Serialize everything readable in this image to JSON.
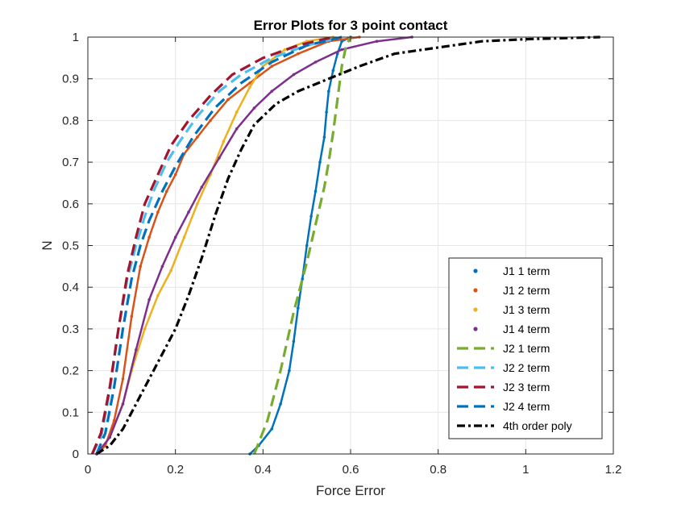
{
  "chart_data": {
    "type": "line",
    "title": "Error Plots for 3 point contact",
    "xlabel": "Force Error",
    "ylabel": "N",
    "xlim": [
      0,
      1.2
    ],
    "ylim": [
      0,
      1
    ],
    "xticks": [
      "0",
      "0.2",
      "0.4",
      "0.6",
      "0.8",
      "1",
      "1.2"
    ],
    "yticks": [
      "0",
      "0.1",
      "0.2",
      "0.3",
      "0.4",
      "0.5",
      "0.6",
      "0.7",
      "0.8",
      "0.9",
      "1"
    ],
    "grid": true,
    "legend_position": "bottom-right",
    "series": [
      {
        "name": "J1 1 term",
        "color": "#0072BD",
        "style": "solid",
        "marker": "dot",
        "points": [
          [
            0.37,
            0
          ],
          [
            0.39,
            0.02
          ],
          [
            0.42,
            0.06
          ],
          [
            0.44,
            0.12
          ],
          [
            0.46,
            0.2
          ],
          [
            0.47,
            0.27
          ],
          [
            0.48,
            0.35
          ],
          [
            0.49,
            0.42
          ],
          [
            0.5,
            0.5
          ],
          [
            0.51,
            0.57
          ],
          [
            0.52,
            0.63
          ],
          [
            0.53,
            0.7
          ],
          [
            0.54,
            0.76
          ],
          [
            0.545,
            0.82
          ],
          [
            0.55,
            0.87
          ],
          [
            0.56,
            0.92
          ],
          [
            0.57,
            0.96
          ],
          [
            0.58,
            0.99
          ],
          [
            0.6,
            1
          ]
        ]
      },
      {
        "name": "J1 2 term",
        "color": "#D95319",
        "style": "solid",
        "marker": "dot",
        "points": [
          [
            0.02,
            0
          ],
          [
            0.04,
            0.02
          ],
          [
            0.06,
            0.08
          ],
          [
            0.08,
            0.18
          ],
          [
            0.1,
            0.33
          ],
          [
            0.12,
            0.45
          ],
          [
            0.14,
            0.52
          ],
          [
            0.16,
            0.58
          ],
          [
            0.18,
            0.63
          ],
          [
            0.2,
            0.67
          ],
          [
            0.22,
            0.72
          ],
          [
            0.25,
            0.76
          ],
          [
            0.28,
            0.8
          ],
          [
            0.32,
            0.85
          ],
          [
            0.37,
            0.89
          ],
          [
            0.42,
            0.93
          ],
          [
            0.48,
            0.96
          ],
          [
            0.55,
            0.99
          ],
          [
            0.62,
            1
          ]
        ]
      },
      {
        "name": "J1 3 term",
        "color": "#EDB120",
        "style": "solid",
        "marker": "dot",
        "points": [
          [
            0.02,
            0
          ],
          [
            0.05,
            0.04
          ],
          [
            0.08,
            0.12
          ],
          [
            0.1,
            0.2
          ],
          [
            0.13,
            0.3
          ],
          [
            0.16,
            0.38
          ],
          [
            0.19,
            0.44
          ],
          [
            0.22,
            0.52
          ],
          [
            0.25,
            0.6
          ],
          [
            0.28,
            0.67
          ],
          [
            0.31,
            0.75
          ],
          [
            0.34,
            0.82
          ],
          [
            0.37,
            0.88
          ],
          [
            0.4,
            0.93
          ],
          [
            0.45,
            0.97
          ],
          [
            0.5,
            0.99
          ],
          [
            0.56,
            1
          ]
        ]
      },
      {
        "name": "J1 4 term",
        "color": "#7E2F8E",
        "style": "solid",
        "marker": "dot",
        "points": [
          [
            0.02,
            0
          ],
          [
            0.05,
            0.04
          ],
          [
            0.08,
            0.12
          ],
          [
            0.11,
            0.25
          ],
          [
            0.14,
            0.37
          ],
          [
            0.17,
            0.45
          ],
          [
            0.2,
            0.52
          ],
          [
            0.23,
            0.58
          ],
          [
            0.26,
            0.64
          ],
          [
            0.3,
            0.71
          ],
          [
            0.34,
            0.78
          ],
          [
            0.38,
            0.83
          ],
          [
            0.42,
            0.87
          ],
          [
            0.47,
            0.91
          ],
          [
            0.52,
            0.94
          ],
          [
            0.58,
            0.97
          ],
          [
            0.66,
            0.99
          ],
          [
            0.74,
            1
          ]
        ]
      },
      {
        "name": "J2 1 term",
        "color": "#77AC30",
        "style": "dashed",
        "marker": "none",
        "points": [
          [
            0.38,
            0
          ],
          [
            0.41,
            0.08
          ],
          [
            0.44,
            0.2
          ],
          [
            0.47,
            0.34
          ],
          [
            0.5,
            0.46
          ],
          [
            0.52,
            0.55
          ],
          [
            0.54,
            0.64
          ],
          [
            0.55,
            0.7
          ],
          [
            0.56,
            0.77
          ],
          [
            0.57,
            0.85
          ],
          [
            0.58,
            0.93
          ],
          [
            0.59,
            0.98
          ],
          [
            0.6,
            1
          ]
        ]
      },
      {
        "name": "J2 2 term",
        "color": "#4DBEEE",
        "style": "dashed",
        "marker": "none",
        "points": [
          [
            0.01,
            0
          ],
          [
            0.03,
            0.04
          ],
          [
            0.05,
            0.15
          ],
          [
            0.07,
            0.3
          ],
          [
            0.09,
            0.42
          ],
          [
            0.11,
            0.5
          ],
          [
            0.13,
            0.57
          ],
          [
            0.15,
            0.63
          ],
          [
            0.18,
            0.7
          ],
          [
            0.21,
            0.75
          ],
          [
            0.25,
            0.81
          ],
          [
            0.3,
            0.87
          ],
          [
            0.35,
            0.91
          ],
          [
            0.42,
            0.95
          ],
          [
            0.5,
            0.98
          ],
          [
            0.58,
            1
          ]
        ]
      },
      {
        "name": "J2 3 term",
        "color": "#A2142F",
        "style": "dashed",
        "marker": "none",
        "points": [
          [
            0.01,
            0
          ],
          [
            0.03,
            0.05
          ],
          [
            0.05,
            0.16
          ],
          [
            0.07,
            0.3
          ],
          [
            0.09,
            0.43
          ],
          [
            0.11,
            0.52
          ],
          [
            0.13,
            0.6
          ],
          [
            0.16,
            0.67
          ],
          [
            0.19,
            0.74
          ],
          [
            0.23,
            0.8
          ],
          [
            0.28,
            0.86
          ],
          [
            0.33,
            0.91
          ],
          [
            0.4,
            0.95
          ],
          [
            0.48,
            0.98
          ],
          [
            0.56,
            1
          ]
        ]
      },
      {
        "name": "J2 4 term",
        "color": "#0072BD",
        "style": "dashed",
        "marker": "none",
        "points": [
          [
            0.02,
            0
          ],
          [
            0.04,
            0.05
          ],
          [
            0.06,
            0.16
          ],
          [
            0.08,
            0.3
          ],
          [
            0.1,
            0.42
          ],
          [
            0.12,
            0.5
          ],
          [
            0.14,
            0.56
          ],
          [
            0.17,
            0.63
          ],
          [
            0.2,
            0.69
          ],
          [
            0.24,
            0.76
          ],
          [
            0.29,
            0.83
          ],
          [
            0.35,
            0.89
          ],
          [
            0.42,
            0.94
          ],
          [
            0.5,
            0.98
          ],
          [
            0.58,
            1
          ]
        ]
      },
      {
        "name": "4th order poly",
        "color": "#000000",
        "style": "dashdot",
        "marker": "none",
        "points": [
          [
            0.02,
            0
          ],
          [
            0.05,
            0.02
          ],
          [
            0.08,
            0.06
          ],
          [
            0.11,
            0.12
          ],
          [
            0.14,
            0.18
          ],
          [
            0.17,
            0.24
          ],
          [
            0.2,
            0.3
          ],
          [
            0.23,
            0.38
          ],
          [
            0.26,
            0.47
          ],
          [
            0.29,
            0.57
          ],
          [
            0.32,
            0.66
          ],
          [
            0.35,
            0.73
          ],
          [
            0.38,
            0.79
          ],
          [
            0.43,
            0.84
          ],
          [
            0.48,
            0.87
          ],
          [
            0.55,
            0.9
          ],
          [
            0.62,
            0.93
          ],
          [
            0.7,
            0.96
          ],
          [
            0.8,
            0.975
          ],
          [
            0.9,
            0.99
          ],
          [
            1.0,
            0.995
          ],
          [
            1.17,
            1
          ]
        ]
      }
    ]
  }
}
